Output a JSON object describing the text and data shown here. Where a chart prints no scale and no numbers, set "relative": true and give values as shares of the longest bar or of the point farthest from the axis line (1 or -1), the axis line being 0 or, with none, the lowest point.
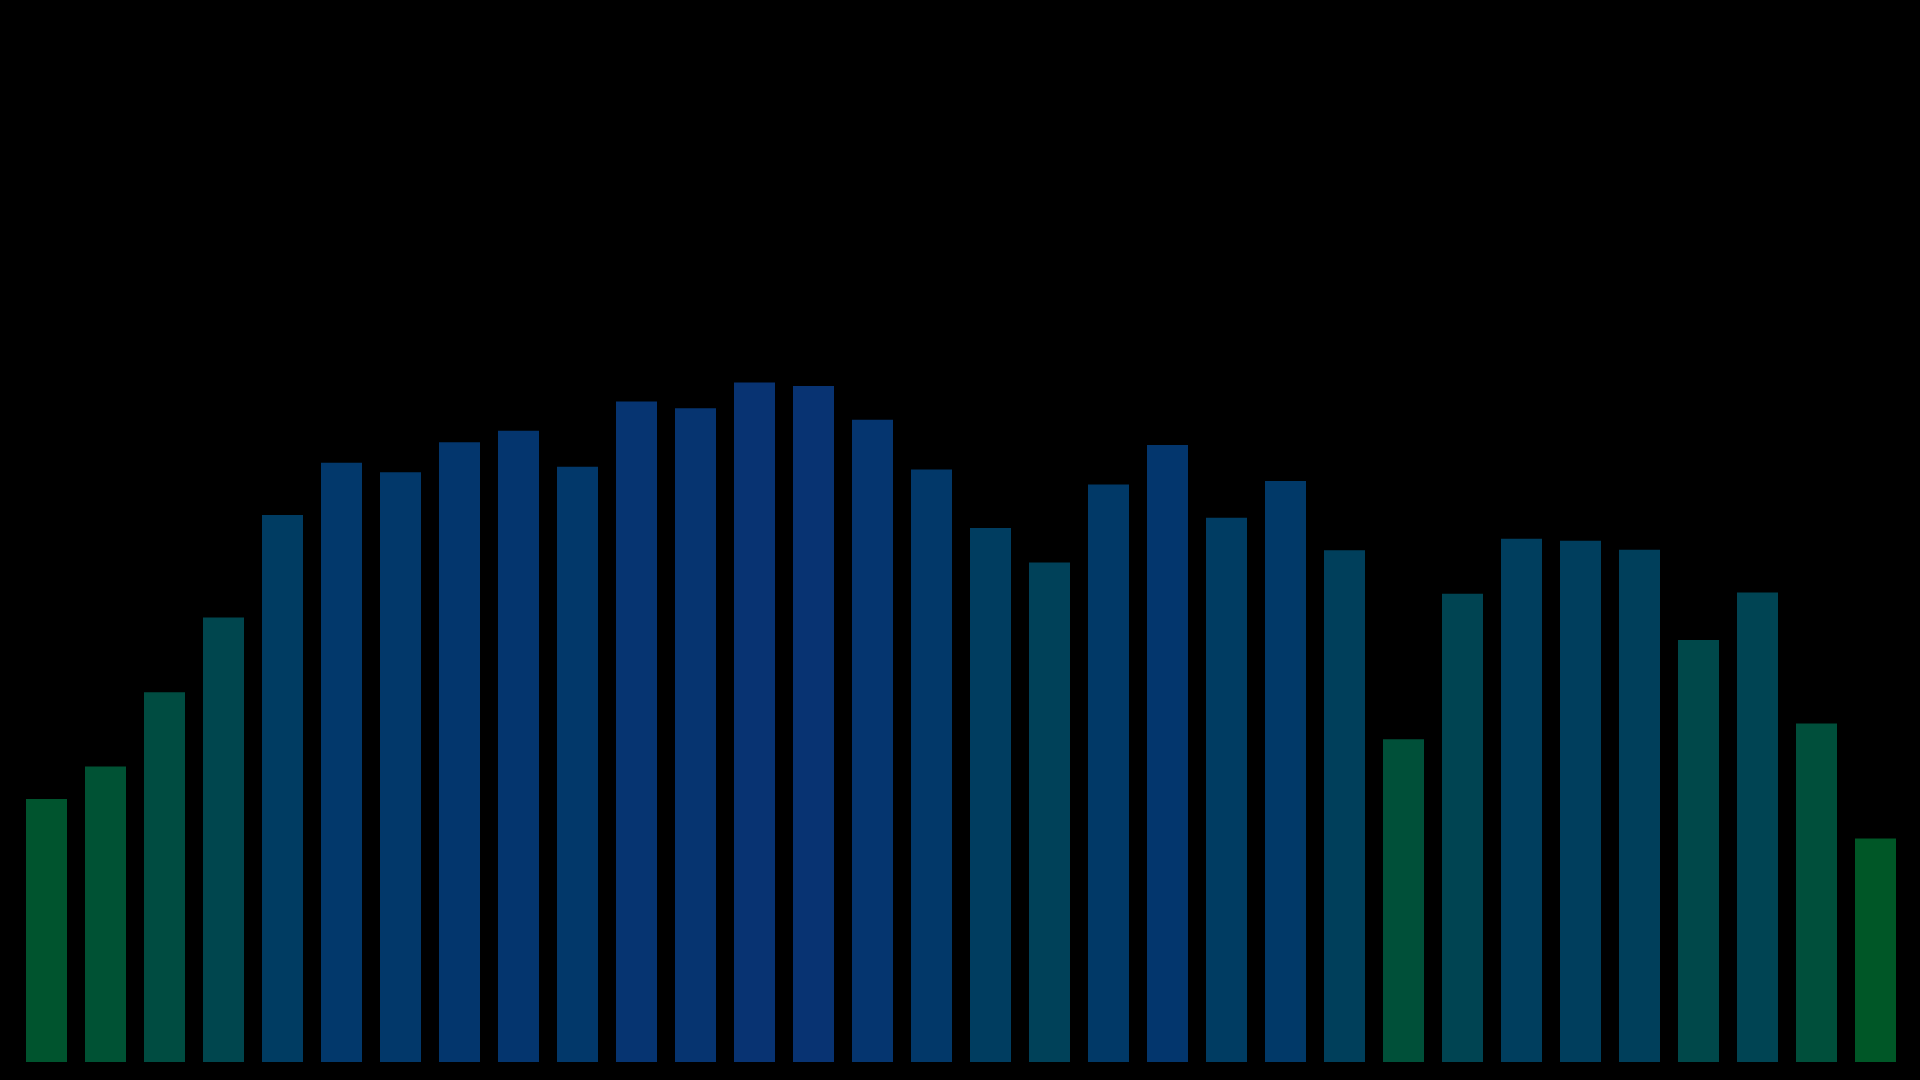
{
  "chart_data": {
    "type": "bar",
    "relative": true,
    "categories": [
      null,
      null,
      null,
      null,
      null,
      null,
      null,
      null,
      null,
      null,
      null,
      null,
      null,
      null,
      null,
      null,
      null,
      null,
      null,
      null,
      null,
      null,
      null,
      null,
      null,
      null,
      null,
      null,
      null,
      null,
      null,
      null
    ],
    "values": [
      0.387,
      0.435,
      0.544,
      0.654,
      0.805,
      0.882,
      0.868,
      0.912,
      0.929,
      0.876,
      0.972,
      0.962,
      1,
      0.995,
      0.945,
      0.872,
      0.786,
      0.735,
      0.85,
      0.908,
      0.801,
      0.855,
      0.753,
      0.475,
      0.689,
      0.77,
      0.767,
      0.754,
      0.621,
      0.691,
      0.498,
      0.329
    ],
    "colors": [
      "#00542e",
      "#005234",
      "#004c41",
      "#00464e",
      "#003c62",
      "#02386b",
      "#02386a",
      "#03366d",
      "#04356e",
      "#02386a",
      "#063471",
      "#063470",
      "#083372",
      "#083372",
      "#05356f",
      "#023869",
      "#003d60",
      "#004159",
      "#013967",
      "#03366d",
      "#003c62",
      "#013968",
      "#003f5b",
      "#005039",
      "#004452",
      "#003e5e",
      "#003e5d",
      "#003f5b",
      "#00484a",
      "#004453",
      "#004f3b",
      "#005727"
    ]
  }
}
